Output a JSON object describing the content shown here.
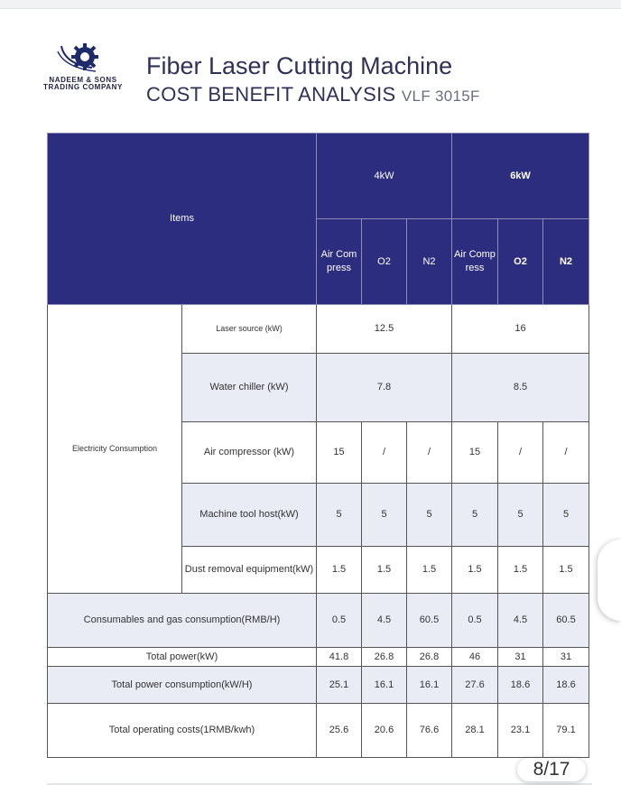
{
  "company": {
    "name_line1": "NADEEM & SONS",
    "name_line2": "TRADING COMPANY"
  },
  "header": {
    "title": "Fiber Laser Cutting Machine",
    "subtitle": "COST BENEFIT ANALYSIS",
    "model": "VLF 3015F"
  },
  "table": {
    "items_label": "Items",
    "groups": [
      "4kW",
      "6kW"
    ],
    "subcols": [
      "Air Compress",
      "O2",
      "N2",
      "Air Compress",
      "O2",
      "N2"
    ],
    "electricity_label": "Electricity Consumption",
    "rows": [
      {
        "label": "Laser source (kW)",
        "merged": [
          "12.5",
          "16"
        ]
      },
      {
        "label": "Water chiller (kW)",
        "merged": [
          "7.8",
          "8.5"
        ]
      },
      {
        "label": "Air compressor (kW)",
        "values": [
          "15",
          "/",
          "/",
          "15",
          "/",
          "/"
        ]
      },
      {
        "label": "Machine tool host(kW)",
        "values": [
          "5",
          "5",
          "5",
          "5",
          "5",
          "5"
        ]
      },
      {
        "label": "Dust removal equipment(kW)",
        "values": [
          "1.5",
          "1.5",
          "1.5",
          "1.5",
          "1.5",
          "1.5"
        ]
      },
      {
        "label": "Consumables and gas consumption(RMB/H)",
        "values": [
          "0.5",
          "4.5",
          "60.5",
          "0.5",
          "4.5",
          "60.5"
        ]
      },
      {
        "label": "Total power(kW)",
        "values": [
          "41.8",
          "26.8",
          "26.8",
          "46",
          "31",
          "31"
        ]
      },
      {
        "label": "Total power consumption(kW/H)",
        "values": [
          "25.1",
          "16.1",
          "16.1",
          "27.6",
          "18.6",
          "18.6"
        ]
      },
      {
        "label": "Total operating costs(1RMB/kwh)",
        "values": [
          "25.6",
          "20.6",
          "76.6",
          "28.1",
          "23.1",
          "79.1"
        ]
      }
    ]
  },
  "page_indicator": "8/17",
  "colors": {
    "header_bg": "#2d2d7f",
    "shaded_row": "#e9ecf5",
    "title": "#2f3157"
  }
}
